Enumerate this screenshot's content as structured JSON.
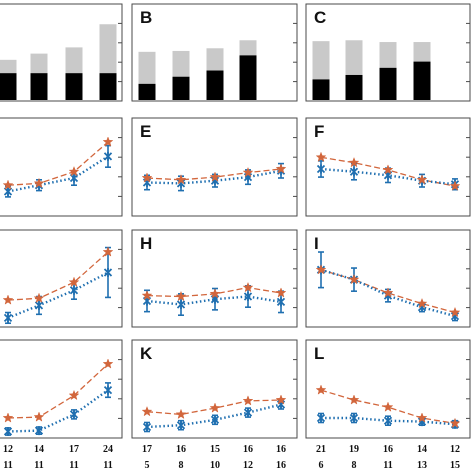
{
  "colors": {
    "bar_light": "#c9c9c9",
    "bar_dark": "#000000",
    "series_a": "#d2663c",
    "series_b": "#1f6fb0",
    "frame": "#4a4a4a"
  },
  "chart_data": [
    {
      "panel": "A",
      "type": "bar",
      "letter": "",
      "ylim": [
        0,
        100
      ],
      "series": [
        {
          "values": [
            44,
            51,
            58,
            84
          ]
        },
        {
          "values": [
            29,
            29,
            29,
            29
          ]
        }
      ]
    },
    {
      "panel": "B",
      "type": "bar",
      "letter": "B",
      "ylim": [
        0,
        100
      ],
      "series": [
        {
          "values": [
            53,
            54,
            57,
            66
          ]
        },
        {
          "values": [
            17,
            25,
            32,
            49
          ]
        }
      ]
    },
    {
      "panel": "C",
      "type": "bar",
      "letter": "C",
      "ylim": [
        0,
        100
      ],
      "series": [
        {
          "values": [
            65,
            66,
            64,
            64
          ]
        },
        {
          "values": [
            22,
            27,
            35,
            42
          ]
        }
      ]
    },
    {
      "panel": "D",
      "type": "line",
      "letter": "",
      "ylim": [
        0,
        100
      ],
      "series": [
        {
          "name": "",
          "values": [
            32,
            34,
            47,
            80
          ]
        },
        {
          "name": "",
          "values": [
            25,
            32,
            40,
            64
          ],
          "err": [
            6,
            6,
            8,
            12
          ]
        }
      ]
    },
    {
      "panel": "E",
      "type": "line",
      "letter": "E",
      "ylim": [
        0,
        100
      ],
      "series": [
        {
          "name": "",
          "values": [
            40,
            38,
            41,
            46,
            50
          ]
        },
        {
          "name": "",
          "values": [
            35,
            34,
            37,
            41,
            48
          ],
          "err": [
            8,
            8,
            7,
            8,
            8
          ]
        }
      ]
    },
    {
      "panel": "F",
      "type": "line",
      "letter": "F",
      "ylim": [
        0,
        100
      ],
      "series": [
        {
          "name": "",
          "values": [
            63,
            57,
            49,
            38,
            31
          ]
        },
        {
          "name": "",
          "values": [
            50,
            47,
            43,
            37,
            33
          ],
          "err": [
            9,
            9,
            8,
            7,
            6
          ]
        }
      ]
    },
    {
      "panel": "G",
      "type": "line",
      "letter": "",
      "ylim": [
        0,
        100
      ],
      "series": [
        {
          "name": "",
          "values": [
            28,
            30,
            48,
            82
          ]
        },
        {
          "name": "",
          "values": [
            8,
            22,
            39,
            59
          ],
          "err": [
            6,
            10,
            10,
            28
          ]
        }
      ]
    },
    {
      "panel": "H",
      "type": "line",
      "letter": "H",
      "ylim": [
        0,
        100
      ],
      "series": [
        {
          "name": "",
          "values": [
            33,
            32,
            35,
            42,
            36
          ]
        },
        {
          "name": "",
          "values": [
            27,
            23,
            29,
            32,
            26
          ],
          "err": [
            12,
            12,
            12,
            12,
            12
          ]
        }
      ]
    },
    {
      "panel": "I",
      "type": "line",
      "letter": "I",
      "ylim": [
        0,
        100
      ],
      "series": [
        {
          "name": "",
          "values": [
            62,
            51,
            36,
            24,
            14
          ]
        },
        {
          "name": "",
          "values": [
            62,
            51,
            33,
            20,
            10
          ],
          "err": [
            20,
            13,
            7,
            5,
            5
          ]
        }
      ]
    },
    {
      "panel": "J",
      "type": "line",
      "letter": "",
      "ylim": [
        0,
        100
      ],
      "series": [
        {
          "name": "",
          "values": [
            20,
            21,
            45,
            80
          ]
        },
        {
          "name": "",
          "values": [
            5,
            6,
            24,
            51
          ],
          "err": [
            4,
            4,
            5,
            8
          ]
        }
      ]
    },
    {
      "panel": "K",
      "type": "line",
      "letter": "K",
      "ylim": [
        0,
        100
      ],
      "series": [
        {
          "name": "",
          "values": [
            27,
            24,
            31,
            39,
            40
          ]
        },
        {
          "name": "",
          "values": [
            10,
            12,
            18,
            26,
            35
          ],
          "err": [
            5,
            5,
            5,
            5,
            5
          ]
        }
      ]
    },
    {
      "panel": "L",
      "type": "line",
      "letter": "L",
      "ylim": [
        0,
        100
      ],
      "series": [
        {
          "name": "",
          "values": [
            51,
            40,
            32,
            20,
            14
          ]
        },
        {
          "name": "",
          "values": [
            20,
            20,
            17,
            16,
            13
          ],
          "err": [
            5,
            5,
            5,
            4,
            4
          ]
        }
      ]
    }
  ],
  "footer": {
    "col1": {
      "row1": [
        "12",
        "14",
        "17",
        "24"
      ],
      "row2": [
        "11",
        "11",
        "11",
        "11"
      ]
    },
    "col2": {
      "row1": [
        "17",
        "16",
        "15",
        "16",
        "16"
      ],
      "row2": [
        "5",
        "8",
        "10",
        "12",
        "16"
      ]
    },
    "col3": {
      "row1": [
        "21",
        "19",
        "16",
        "14",
        "12"
      ],
      "row2": [
        "6",
        "8",
        "11",
        "13",
        "15"
      ]
    }
  }
}
